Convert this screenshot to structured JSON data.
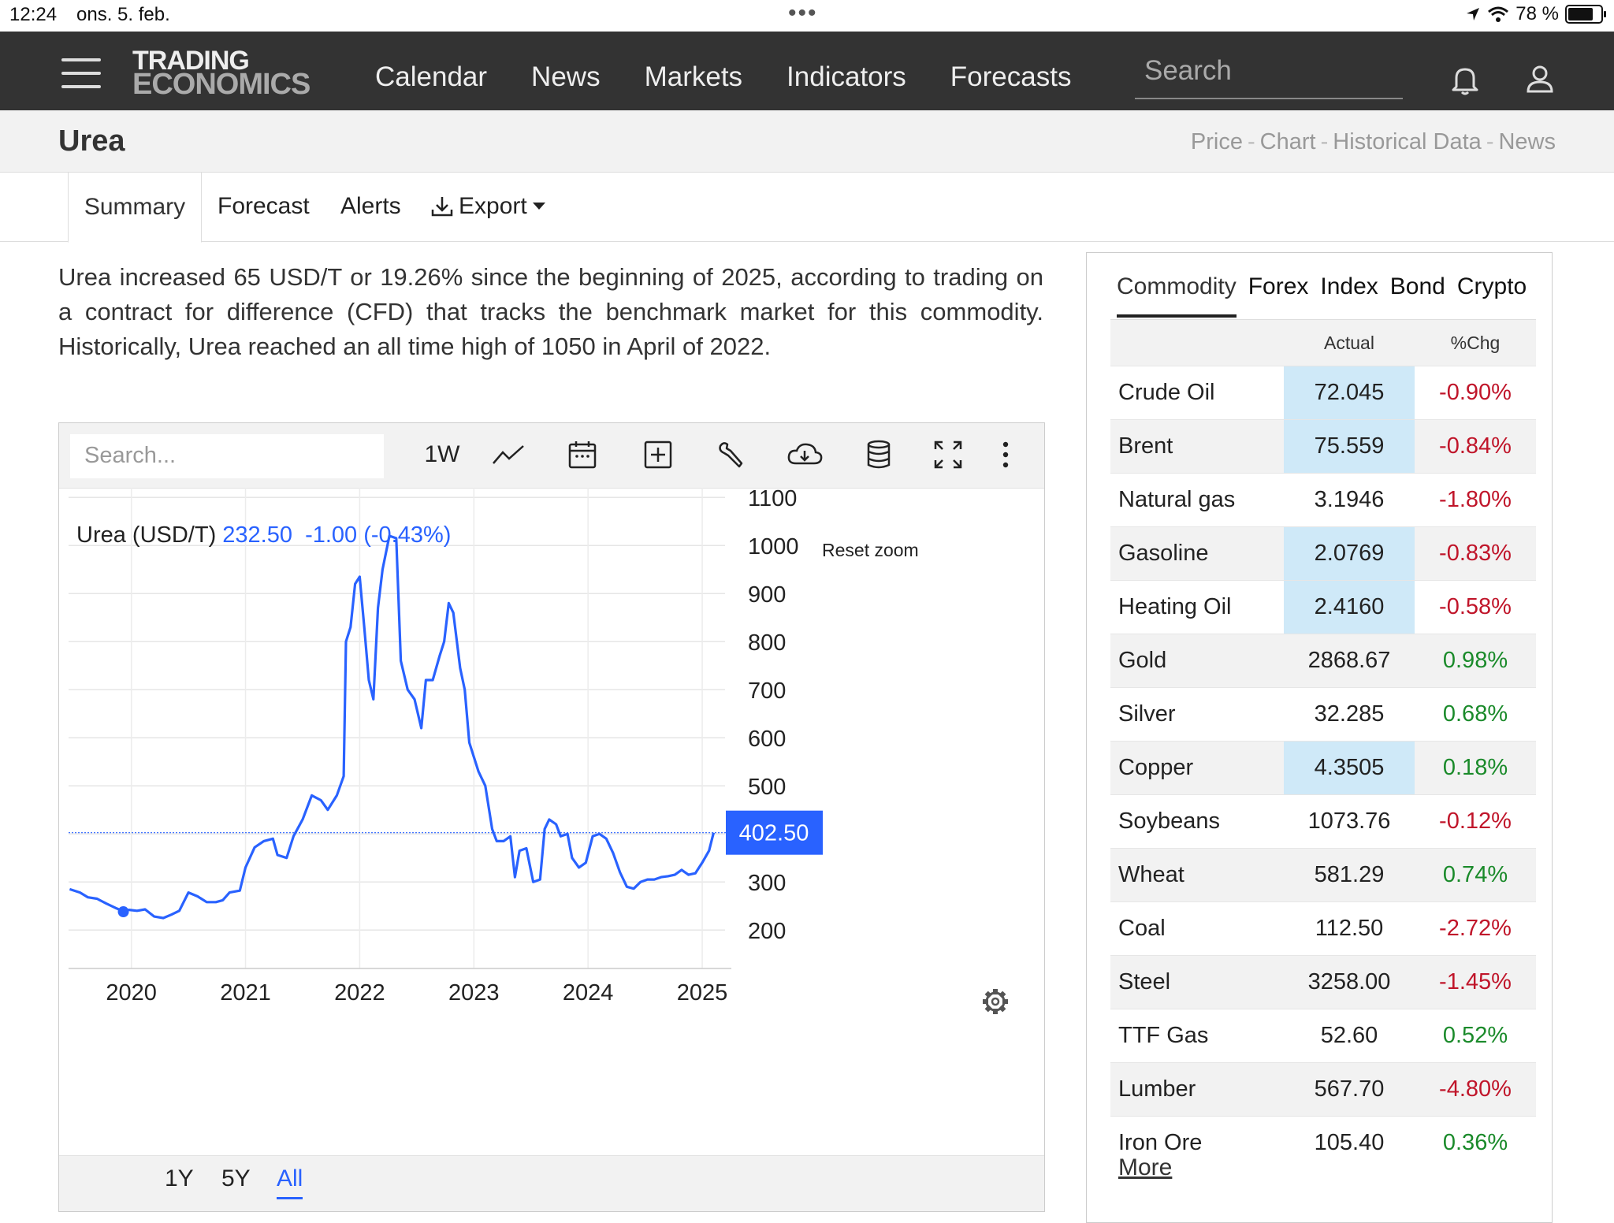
{
  "status_bar": {
    "time": "12:24",
    "date": "ons. 5. feb.",
    "battery": "78 %"
  },
  "nav": {
    "logo_line1": "TRADING",
    "logo_line2": "ECONOMICS",
    "links": [
      "Calendar",
      "News",
      "Markets",
      "Indicators",
      "Forecasts"
    ],
    "search_placeholder": "Search"
  },
  "page": {
    "title": "Urea",
    "links": [
      "Price",
      "Chart",
      "Historical Data",
      "News"
    ]
  },
  "tabs": {
    "summary": "Summary",
    "forecast": "Forecast",
    "alerts": "Alerts",
    "export": "Export"
  },
  "description": "Urea increased 65 USD/T or 19.26% since the beginning of 2025, according to trading on a contract for difference (CFD) that tracks the benchmark market for this commodity. Historically, Urea reached an all time high of 1050 in April of 2022.",
  "chart_toolbar": {
    "search_placeholder": "Search...",
    "interval": "1W"
  },
  "chart_header": {
    "name": "Urea (USD/T)",
    "price": "232.50",
    "change": "-1.00 (-0.43%)",
    "reset_zoom": "Reset zoom",
    "last_label": "402.50"
  },
  "ranges": [
    "1Y",
    "5Y",
    "All"
  ],
  "colors": {
    "accent": "#2962ff",
    "nav_bg": "#333333",
    "highlight": "#cfe9f8",
    "negative": "#c0152a",
    "positive": "#1a8a2a"
  },
  "chart_data": {
    "type": "line",
    "title": "Urea (USD/T)",
    "xlabel": "",
    "ylabel": "",
    "ylim": [
      120,
      1120
    ],
    "yticks": [
      200,
      300,
      400,
      500,
      600,
      700,
      800,
      900,
      1000,
      1100
    ],
    "xticks": [
      {
        "label": "2020",
        "x": 2020.0
      },
      {
        "label": "2021",
        "x": 2021.0
      },
      {
        "label": "2022",
        "x": 2022.0
      },
      {
        "label": "2023",
        "x": 2023.0
      },
      {
        "label": "2024",
        "x": 2024.0
      },
      {
        "label": "2025",
        "x": 2025.0
      }
    ],
    "xlim": [
      2019.45,
      2025.2
    ],
    "last_value": 402.5,
    "series": [
      {
        "name": "Urea",
        "points": [
          [
            2019.46,
            285
          ],
          [
            2019.55,
            278
          ],
          [
            2019.62,
            268
          ],
          [
            2019.7,
            265
          ],
          [
            2019.78,
            255
          ],
          [
            2019.86,
            246
          ],
          [
            2019.92,
            240
          ],
          [
            2019.98,
            242
          ],
          [
            2020.05,
            240
          ],
          [
            2020.12,
            243
          ],
          [
            2020.2,
            228
          ],
          [
            2020.28,
            225
          ],
          [
            2020.35,
            232
          ],
          [
            2020.42,
            240
          ],
          [
            2020.5,
            278
          ],
          [
            2020.58,
            270
          ],
          [
            2020.66,
            258
          ],
          [
            2020.74,
            258
          ],
          [
            2020.8,
            262
          ],
          [
            2020.86,
            278
          ],
          [
            2020.95,
            282
          ],
          [
            2021.0,
            330
          ],
          [
            2021.08,
            372
          ],
          [
            2021.16,
            385
          ],
          [
            2021.24,
            390
          ],
          [
            2021.28,
            356
          ],
          [
            2021.36,
            350
          ],
          [
            2021.42,
            395
          ],
          [
            2021.5,
            430
          ],
          [
            2021.58,
            480
          ],
          [
            2021.66,
            470
          ],
          [
            2021.72,
            450
          ],
          [
            2021.8,
            480
          ],
          [
            2021.86,
            520
          ],
          [
            2021.88,
            800
          ],
          [
            2021.92,
            830
          ],
          [
            2021.96,
            920
          ],
          [
            2022.0,
            935
          ],
          [
            2022.04,
            830
          ],
          [
            2022.08,
            720
          ],
          [
            2022.12,
            680
          ],
          [
            2022.16,
            870
          ],
          [
            2022.2,
            950
          ],
          [
            2022.26,
            1020
          ],
          [
            2022.32,
            1015
          ],
          [
            2022.36,
            760
          ],
          [
            2022.42,
            700
          ],
          [
            2022.48,
            680
          ],
          [
            2022.54,
            620
          ],
          [
            2022.58,
            720
          ],
          [
            2022.64,
            720
          ],
          [
            2022.7,
            770
          ],
          [
            2022.74,
            800
          ],
          [
            2022.78,
            880
          ],
          [
            2022.82,
            860
          ],
          [
            2022.88,
            745
          ],
          [
            2022.92,
            700
          ],
          [
            2022.96,
            590
          ],
          [
            2023.0,
            560
          ],
          [
            2023.04,
            530
          ],
          [
            2023.1,
            500
          ],
          [
            2023.16,
            410
          ],
          [
            2023.2,
            385
          ],
          [
            2023.26,
            385
          ],
          [
            2023.32,
            395
          ],
          [
            2023.36,
            310
          ],
          [
            2023.4,
            365
          ],
          [
            2023.46,
            370
          ],
          [
            2023.52,
            300
          ],
          [
            2023.58,
            305
          ],
          [
            2023.62,
            410
          ],
          [
            2023.66,
            430
          ],
          [
            2023.72,
            420
          ],
          [
            2023.76,
            395
          ],
          [
            2023.82,
            400
          ],
          [
            2023.86,
            350
          ],
          [
            2023.92,
            330
          ],
          [
            2023.98,
            340
          ],
          [
            2024.04,
            395
          ],
          [
            2024.1,
            400
          ],
          [
            2024.16,
            390
          ],
          [
            2024.22,
            360
          ],
          [
            2024.28,
            320
          ],
          [
            2024.34,
            290
          ],
          [
            2024.4,
            286
          ],
          [
            2024.46,
            300
          ],
          [
            2024.52,
            305
          ],
          [
            2024.58,
            305
          ],
          [
            2024.64,
            310
          ],
          [
            2024.7,
            312
          ],
          [
            2024.76,
            315
          ],
          [
            2024.82,
            325
          ],
          [
            2024.88,
            315
          ],
          [
            2024.94,
            318
          ],
          [
            2025.0,
            340
          ],
          [
            2025.06,
            365
          ],
          [
            2025.1,
            402.5
          ]
        ]
      }
    ],
    "marker": [
      2019.93,
      238
    ]
  },
  "sidebar": {
    "tabs": [
      "Commodity",
      "Forex",
      "Index",
      "Bond",
      "Crypto"
    ],
    "columns": [
      "",
      "Actual",
      "%Chg"
    ],
    "rows": [
      {
        "name": "Crude Oil",
        "actual": "72.045",
        "chg": "-0.90%"
      },
      {
        "name": "Brent",
        "actual": "75.559",
        "chg": "-0.84%"
      },
      {
        "name": "Natural gas",
        "actual": "3.1946",
        "chg": "-1.80%"
      },
      {
        "name": "Gasoline",
        "actual": "2.0769",
        "chg": "-0.83%"
      },
      {
        "name": "Heating Oil",
        "actual": "2.4160",
        "chg": "-0.58%"
      },
      {
        "name": "Gold",
        "actual": "2868.67",
        "chg": "0.98%"
      },
      {
        "name": "Silver",
        "actual": "32.285",
        "chg": "0.68%"
      },
      {
        "name": "Copper",
        "actual": "4.3505",
        "chg": "0.18%"
      },
      {
        "name": "Soybeans",
        "actual": "1073.76",
        "chg": "-0.12%"
      },
      {
        "name": "Wheat",
        "actual": "581.29",
        "chg": "0.74%"
      },
      {
        "name": "Coal",
        "actual": "112.50",
        "chg": "-2.72%"
      },
      {
        "name": "Steel",
        "actual": "3258.00",
        "chg": "-1.45%"
      },
      {
        "name": "TTF Gas",
        "actual": "52.60",
        "chg": "0.52%"
      },
      {
        "name": "Lumber",
        "actual": "567.70",
        "chg": "-4.80%"
      },
      {
        "name": "Iron Ore",
        "actual": "105.40",
        "chg": "0.36%"
      }
    ],
    "highlight_actual": [
      "Crude Oil",
      "Brent",
      "Gasoline",
      "Heating Oil",
      "Copper"
    ],
    "more": "More"
  }
}
